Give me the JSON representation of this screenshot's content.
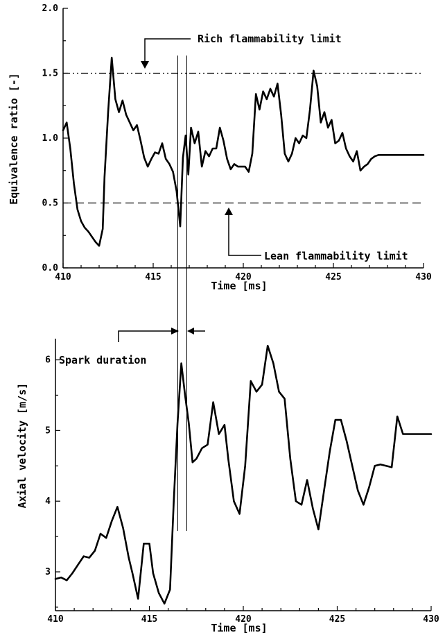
{
  "chart_data": [
    {
      "type": "line",
      "xlabel": "Time [ms]",
      "ylabel": "Equivalence ratio [-]",
      "xlim": [
        410,
        430
      ],
      "ylim": [
        0.0,
        2.0
      ],
      "xticks": [
        "410",
        "415",
        "420",
        "425",
        "430"
      ],
      "yticks": [
        "0.0",
        "0.5",
        "1.0",
        "1.5",
        "2.0"
      ],
      "grid": false,
      "reference_lines": [
        {
          "label": "Rich flammability limit",
          "y": 1.5,
          "style": "dash-dot-dot"
        },
        {
          "label": "Lean flammability limit",
          "y": 0.5,
          "style": "dashed"
        }
      ],
      "series": [
        {
          "x": [
            410.0,
            410.2,
            410.4,
            410.6,
            410.8,
            411.0,
            411.2,
            411.4,
            411.6,
            411.8,
            412.0,
            412.2,
            412.3,
            412.5,
            412.7,
            412.9,
            413.1,
            413.3,
            413.5,
            413.7,
            413.9,
            414.1,
            414.3,
            414.5,
            414.7,
            414.9,
            415.1,
            415.3,
            415.5,
            415.7,
            415.9,
            416.1,
            416.3,
            416.5,
            416.65,
            416.8,
            416.95,
            417.1,
            417.3,
            417.5,
            417.7,
            417.9,
            418.1,
            418.3,
            418.5,
            418.7,
            418.9,
            419.1,
            419.3,
            419.5,
            419.7,
            419.9,
            420.1,
            420.3,
            420.5,
            420.7,
            420.9,
            421.1,
            421.3,
            421.5,
            421.7,
            421.9,
            422.1,
            422.3,
            422.5,
            422.7,
            422.9,
            423.1,
            423.3,
            423.5,
            423.7,
            423.9,
            424.1,
            424.3,
            424.5,
            424.7,
            424.9,
            425.1,
            425.3,
            425.5,
            425.7,
            425.9,
            426.1,
            426.3,
            426.5,
            426.7,
            426.9,
            427.1,
            427.3,
            427.5,
            427.7,
            427.9,
            428.1,
            428.3,
            428.5,
            428.7,
            428.9,
            429.1,
            429.3,
            429.5,
            429.7,
            430.0
          ],
          "y": [
            1.06,
            1.12,
            0.92,
            0.65,
            0.45,
            0.36,
            0.31,
            0.28,
            0.24,
            0.2,
            0.17,
            0.3,
            0.7,
            1.2,
            1.62,
            1.3,
            1.2,
            1.29,
            1.18,
            1.12,
            1.06,
            1.1,
            0.98,
            0.85,
            0.78,
            0.84,
            0.89,
            0.88,
            0.96,
            0.84,
            0.8,
            0.74,
            0.59,
            0.32,
            0.85,
            1.02,
            0.72,
            1.08,
            0.96,
            1.05,
            0.78,
            0.9,
            0.86,
            0.92,
            0.92,
            1.08,
            0.98,
            0.84,
            0.76,
            0.8,
            0.78,
            0.78,
            0.78,
            0.74,
            0.88,
            1.34,
            1.22,
            1.36,
            1.3,
            1.38,
            1.32,
            1.42,
            1.18,
            0.88,
            0.82,
            0.88,
            1.0,
            0.96,
            1.02,
            1.0,
            1.22,
            1.52,
            1.4,
            1.12,
            1.2,
            1.08,
            1.14,
            0.96,
            0.98,
            1.04,
            0.92,
            0.86,
            0.82,
            0.9,
            0.75,
            0.78,
            0.8,
            0.84,
            0.86,
            0.87,
            0.87,
            0.87,
            0.87,
            0.87,
            0.87,
            0.87,
            0.87,
            0.87,
            0.87,
            0.87,
            0.87,
            0.87
          ]
        }
      ]
    },
    {
      "type": "line",
      "xlabel": "Time [ms]",
      "ylabel": "Axial velocity [m/s]",
      "xlim": [
        410,
        430
      ],
      "ylim": [
        2.45,
        6.3
      ],
      "xticks": [
        "410",
        "415",
        "420",
        "425",
        "430"
      ],
      "yticks": [
        "3",
        "4",
        "5",
        "6"
      ],
      "grid": false,
      "series": [
        {
          "x": [
            410.0,
            410.3,
            410.6,
            410.9,
            411.2,
            411.5,
            411.8,
            412.1,
            412.4,
            412.7,
            413.0,
            413.3,
            413.6,
            413.9,
            414.1,
            414.4,
            414.7,
            415.0,
            415.2,
            415.5,
            415.8,
            416.1,
            416.3,
            416.5,
            416.7,
            416.9,
            417.1,
            417.3,
            417.5,
            417.8,
            418.1,
            418.4,
            418.7,
            419.0,
            419.2,
            419.5,
            419.8,
            420.1,
            420.4,
            420.7,
            421.0,
            421.3,
            421.6,
            421.9,
            422.2,
            422.5,
            422.8,
            423.1,
            423.4,
            423.7,
            424.0,
            424.3,
            424.6,
            424.9,
            425.2,
            425.5,
            425.8,
            426.1,
            426.4,
            426.7,
            427.0,
            427.3,
            427.6,
            427.9,
            428.2,
            428.5,
            428.8,
            429.1,
            429.4,
            429.7,
            430.0
          ],
          "y": [
            2.9,
            2.92,
            2.88,
            2.98,
            3.1,
            3.22,
            3.2,
            3.3,
            3.54,
            3.48,
            3.72,
            3.92,
            3.62,
            3.2,
            2.98,
            2.62,
            3.4,
            3.4,
            2.98,
            2.7,
            2.55,
            2.75,
            4.0,
            5.1,
            5.95,
            5.5,
            5.1,
            4.55,
            4.6,
            4.75,
            4.8,
            5.4,
            4.95,
            5.08,
            4.6,
            4.0,
            3.82,
            4.5,
            5.7,
            5.55,
            5.65,
            6.2,
            5.95,
            5.55,
            5.45,
            4.6,
            4.0,
            3.95,
            4.3,
            3.9,
            3.6,
            4.15,
            4.7,
            5.15,
            5.15,
            4.85,
            4.5,
            4.15,
            3.95,
            4.2,
            4.5,
            4.52,
            4.5,
            4.48,
            5.2,
            4.95,
            4.95,
            4.95,
            4.95,
            4.95,
            4.95
          ]
        }
      ]
    }
  ],
  "annotations": {
    "rich_label": "Rich flammability limit",
    "lean_label": "Lean flammability limit",
    "spark_label": "Spark duration"
  }
}
